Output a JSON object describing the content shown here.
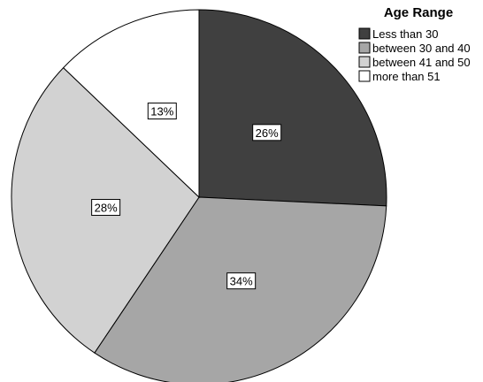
{
  "chart_data": {
    "type": "pie",
    "legend_title": "Age Range",
    "legend_position": "top-right",
    "start_angle_deg": 0,
    "direction": "clockwise",
    "slices": [
      {
        "label": "Less than 30",
        "value": 26,
        "value_label": "26%",
        "color": "#404040"
      },
      {
        "label": "between 30 and 40",
        "value": 34,
        "value_label": "34%",
        "color": "#a6a6a6"
      },
      {
        "label": "between 41 and 50",
        "value": 28,
        "value_label": "28%",
        "color": "#d2d2d2"
      },
      {
        "label": "more than 51",
        "value": 13,
        "value_label": "13%",
        "color": "#ffffff"
      }
    ]
  }
}
